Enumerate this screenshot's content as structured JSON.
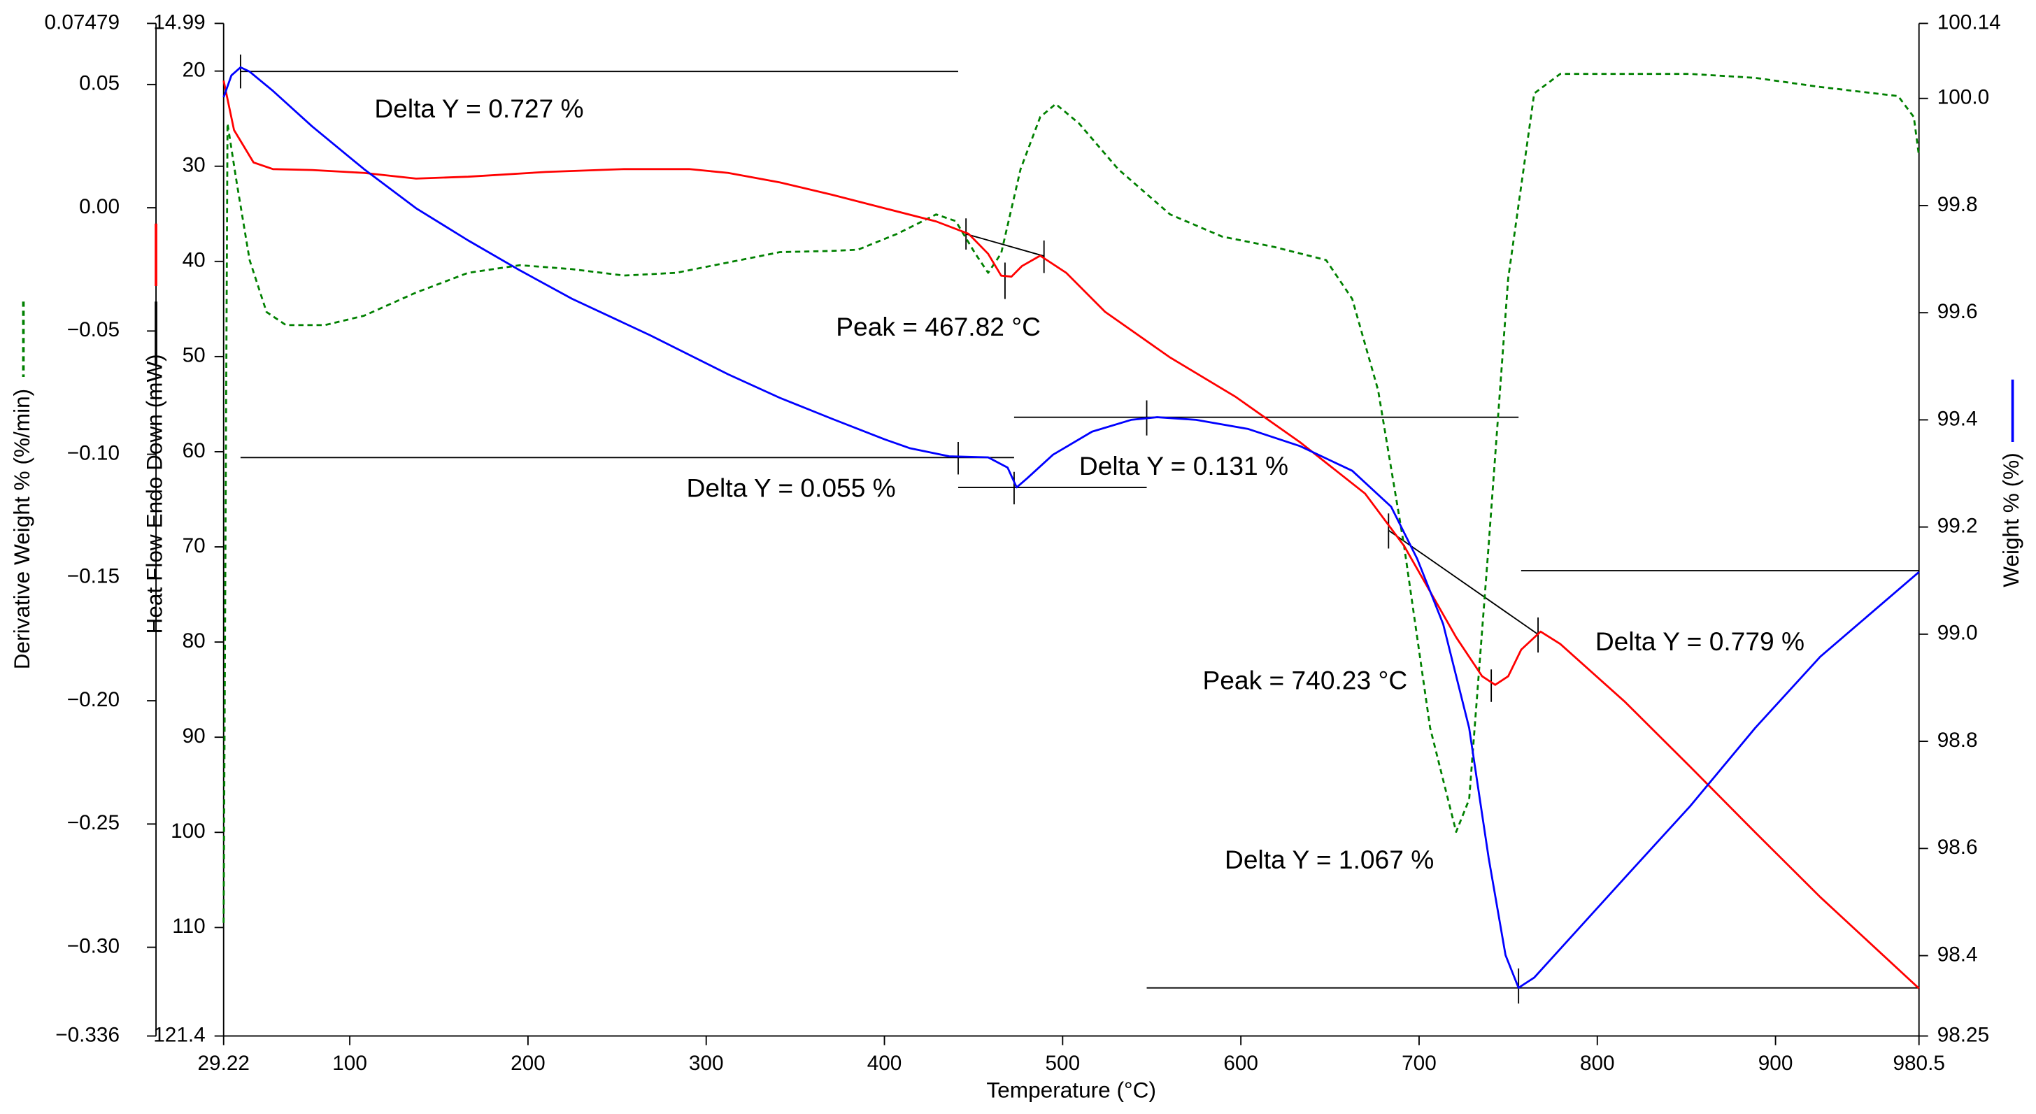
{
  "chart_data": {
    "type": "line",
    "xlabel": "Temperature (°C)",
    "ylabel": "Heat Flow Endo Down (mW)",
    "y2label": "Weight % (%)",
    "y3label": "Derivative Weight % (%/min)",
    "xlim": [
      29.22,
      980.5
    ],
    "xticks": [
      29.22,
      100,
      200,
      300,
      400,
      500,
      600,
      700,
      800,
      900,
      980.5
    ],
    "ylim": [
      14.99,
      121.4
    ],
    "y_inverted": true,
    "yticks": [
      14.99,
      20,
      30,
      40,
      50,
      60,
      70,
      80,
      90,
      100,
      110,
      121.4
    ],
    "y2lim": [
      98.25,
      100.14
    ],
    "y2ticks": [
      98.25,
      98.4,
      98.6,
      98.8,
      {
        "value": 99,
        "label": "99.0"
      },
      99.2,
      99.4,
      99.6,
      99.8,
      {
        "value": 100,
        "label": "100.0"
      },
      100.14
    ],
    "y3lim": [
      -0.336,
      0.07479
    ],
    "y3ticks": [
      0.07479,
      0.05,
      {
        "value": 0,
        "label": "0.00"
      },
      {
        "value": -0.05,
        "label": "−0.05"
      },
      {
        "value": -0.1,
        "label": "−0.10"
      },
      {
        "value": -0.15,
        "label": "−0.15"
      },
      {
        "value": -0.2,
        "label": "−0.20"
      },
      {
        "value": -0.25,
        "label": "−0.25"
      },
      {
        "value": -0.3,
        "label": "−0.30"
      },
      {
        "value": -0.336,
        "label": "−0.336"
      }
    ],
    "series": [
      {
        "color": "#ff0000",
        "axis": "y",
        "dashed": false,
        "x": [
          29.22,
          35.06,
          46.0,
          56.9,
          78.8,
          108.0,
          137.2,
          166.4,
          210.1,
          254.0,
          290.4,
          312.3,
          341.4,
          370.6,
          399.8,
          429.0,
          447.2,
          458.2,
          465.5,
          471.3,
          477.1,
          487.4,
          502.0,
          523.8,
          560.3,
          596.8,
          633.2,
          669.7,
          691.6,
          706.2,
          720.8,
          735.4,
          742.7,
          750.0,
          757.3,
          768.2,
          779.2,
          815.6,
          852.1,
          888.6,
          925.1,
          980.5
        ],
        "values": [
          21.0,
          26.2,
          29.6,
          30.3,
          30.4,
          30.7,
          31.3,
          31.1,
          30.6,
          30.3,
          30.3,
          30.7,
          31.7,
          33.0,
          34.4,
          35.8,
          37.1,
          39.2,
          41.5,
          41.6,
          40.5,
          39.4,
          41.2,
          45.3,
          50.1,
          54.2,
          59.0,
          64.4,
          69.9,
          74.7,
          79.5,
          83.6,
          84.5,
          83.6,
          80.8,
          78.9,
          80.2,
          86.3,
          93.1,
          100.0,
          106.8,
          116.4
        ]
      },
      {
        "color": "#0000ff",
        "axis": "y2",
        "dashed": false,
        "x": [
          29.22,
          33.6,
          38.7,
          43.8,
          56.9,
          78.8,
          108.0,
          137.2,
          166.4,
          195.5,
          224.7,
          268.5,
          312.3,
          341.4,
          370.6,
          399.8,
          414.4,
          436.3,
          458.2,
          469.1,
          474.2,
          480.1,
          494.6,
          516.5,
          538.4,
          553.0,
          574.9,
          604.1,
          633.2,
          662.5,
          684.3,
          698.9,
          713.5,
          728.1,
          739.0,
          748.5,
          755.8,
          764.6,
          815.6,
          852.1,
          888.6,
          925.1,
          980.5
        ],
        "values": [
          100.002,
          100.043,
          100.058,
          100.05,
          100.014,
          99.948,
          99.868,
          99.795,
          99.735,
          99.679,
          99.626,
          99.558,
          99.485,
          99.441,
          99.402,
          99.364,
          99.347,
          99.332,
          99.33,
          99.311,
          99.274,
          99.291,
          99.335,
          99.378,
          99.4,
          99.405,
          99.4,
          99.383,
          99.351,
          99.305,
          99.238,
          99.141,
          99.019,
          98.825,
          98.583,
          98.401,
          98.34,
          98.359,
          98.546,
          98.679,
          98.825,
          98.958,
          99.116
        ]
      },
      {
        "color": "#008000",
        "axis": "y3",
        "dashed": true,
        "x": [
          29.22,
          31.4,
          36.5,
          43.8,
          53.3,
          64.2,
          86.1,
          108.0,
          137.2,
          166.4,
          195.5,
          224.7,
          254.0,
          283.1,
          312.3,
          341.4,
          370.6,
          385.2,
          407.1,
          429.0,
          440.0,
          450.9,
          458.2,
          465.5,
          476.4,
          487.4,
          496.1,
          509.2,
          531.1,
          560.3,
          589.5,
          618.7,
          647.8,
          662.5,
          677.0,
          691.6,
          706.2,
          720.8,
          728.1,
          739.0,
          750.0,
          764.6,
          779.2,
          852.1,
          888.6,
          925.1,
          968.8,
          977.6,
          980.5
        ],
        "values": [
          -0.2901,
          0.0342,
          0.0105,
          -0.0212,
          -0.0423,
          -0.0476,
          -0.0476,
          -0.0438,
          -0.0344,
          -0.0264,
          -0.0233,
          -0.0249,
          -0.0275,
          -0.0264,
          -0.0222,
          -0.018,
          -0.0175,
          -0.017,
          -0.0106,
          -0.0027,
          -0.0054,
          -0.0185,
          -0.0264,
          -0.0185,
          0.0157,
          0.0368,
          0.0421,
          0.0342,
          0.0157,
          -0.0027,
          -0.0117,
          -0.0159,
          -0.0212,
          -0.037,
          -0.074,
          -0.1372,
          -0.211,
          -0.2532,
          -0.24,
          -0.1372,
          -0.0287,
          0.0464,
          0.0543,
          0.0543,
          0.0527,
          0.049,
          0.0453,
          0.0368,
          0.021
        ]
      }
    ],
    "annotations": [
      "Delta Y = 0.727 %",
      "Peak = 467.82 °C",
      "Delta Y = 0.055 %",
      "Delta Y = 0.131 %",
      "Peak = 740.23 °C",
      "Delta Y = 0.779 %",
      "Delta Y = 1.067 %"
    ]
  }
}
